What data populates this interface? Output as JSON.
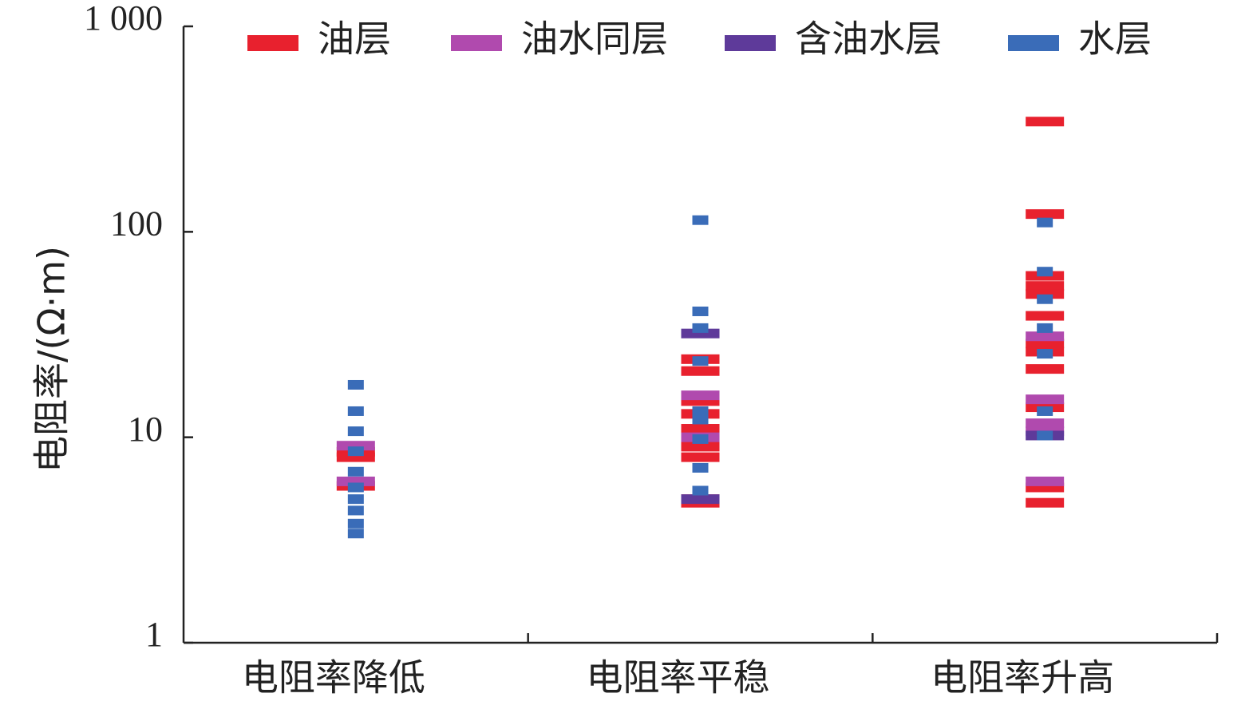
{
  "chart_data": {
    "type": "strip",
    "y_label": "电阻率/(Ω·m)",
    "categories": [
      "电阻率降低",
      "电阻率平稳",
      "电阻率升高"
    ],
    "log_scale": true,
    "ylim": [
      1,
      1000
    ],
    "yticks": [
      1,
      10,
      100,
      {
        "value": 1000,
        "label": "1 000"
      }
    ],
    "legend": "top",
    "series": [
      {
        "name": "油层",
        "color": "#e8212e",
        "x": [
          "电阻率降低",
          "电阻率降低",
          "电阻率降低",
          "电阻率平稳",
          "电阻率平稳",
          "电阻率平稳",
          "电阻率平稳",
          "电阻率平稳",
          "电阻率平稳",
          "电阻率平稳",
          "电阻率平稳",
          "电阻率平稳",
          "电阻率升高",
          "电阻率升高",
          "电阻率升高",
          "电阻率升高",
          "电阻率升高",
          "电阻率升高",
          "电阻率升高",
          "电阻率升高",
          "电阻率升高",
          "电阻率升高",
          "电阻率升高",
          "电阻率升高"
        ],
        "values": [
          8.5,
          8,
          5.8,
          24,
          21,
          15,
          13,
          11,
          9,
          8,
          5,
          4.8,
          344,
          122,
          61,
          54.5,
          49.8,
          39,
          28.6,
          26.1,
          21.5,
          14,
          5.7,
          4.8
        ]
      },
      {
        "name": "油水同层",
        "color": "#b04aae",
        "x": [
          "电阻率降低",
          "电阻率降低",
          "电阻率平稳",
          "电阻率平稳",
          "电阻率升高",
          "电阻率升高",
          "电阻率升高",
          "电阻率升高",
          "电阻率升高"
        ],
        "values": [
          9.1,
          6.1,
          16,
          10,
          31,
          15.3,
          11.7,
          10.7,
          6.1
        ]
      },
      {
        "name": "含油水层",
        "color": "#5e3a9a",
        "x": [
          "电阻率平稳",
          "电阻率平稳",
          "电阻率升高"
        ],
        "values": [
          32,
          5,
          10.2
        ]
      },
      {
        "name": "水层",
        "color": "#3a6cb8",
        "x": [
          "电阻率降低",
          "电阻率降低",
          "电阻率降低",
          "电阻率降低",
          "电阻率降低",
          "电阻率降低",
          "电阻率降低",
          "电阻率降低",
          "电阻率降低",
          "电阻率降低",
          "电阻率平稳",
          "电阻率平稳",
          "电阻率平稳",
          "电阻率平稳",
          "电阻率平稳",
          "电阻率平稳",
          "电阻率平稳",
          "电阻率平稳",
          "电阻率平稳",
          "电阻率升高",
          "电阻率升高",
          "电阻率升高",
          "电阻率升高",
          "电阻率升高",
          "电阻率升高",
          "电阻率升高"
        ],
        "values": [
          18,
          13.4,
          10.7,
          8.55,
          6.8,
          5.7,
          5,
          4.4,
          3.8,
          3.4,
          114,
          41,
          34,
          23.5,
          13.4,
          12.2,
          9.8,
          7.1,
          5.5,
          111,
          64,
          47,
          34,
          25.5,
          13.4,
          10.2
        ]
      }
    ]
  }
}
